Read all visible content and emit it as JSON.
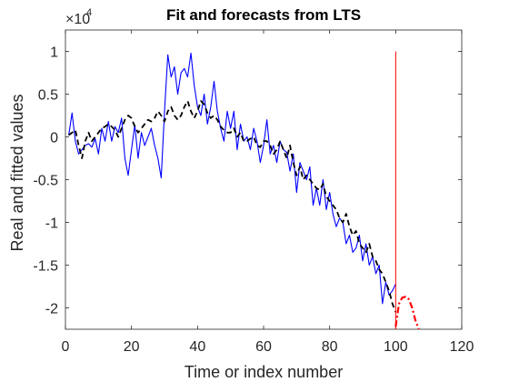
{
  "chart_data": {
    "type": "line",
    "title": "Fit and forecasts from LTS",
    "xlabel": "Time or index number",
    "ylabel": "Real and fitted values",
    "exponent_base": "×10",
    "exponent_power": "4",
    "xlim": [
      0,
      120
    ],
    "ylim": [
      -2.25,
      1.25
    ],
    "y_scale_note": "y values in units of 10^4",
    "x_ticks": [
      0,
      20,
      40,
      60,
      80,
      100,
      120
    ],
    "x_tick_labels": [
      "0",
      "20",
      "40",
      "60",
      "80",
      "100",
      "120"
    ],
    "y_ticks": [
      1,
      0.5,
      0,
      -0.5,
      -1,
      -1.5,
      -2
    ],
    "y_tick_labels": [
      "1",
      "0.5",
      "0",
      "-0.5",
      "-1",
      "-1.5",
      "-2"
    ],
    "grid": false,
    "box": true,
    "vline": {
      "x": 100,
      "y_from": -2.25,
      "y_to": 1.0,
      "color": "#ff0000"
    },
    "series": [
      {
        "style": "solid",
        "color": "#0000ff",
        "x": [
          1,
          2,
          3,
          4,
          5,
          6,
          7,
          8,
          9,
          10,
          11,
          12,
          13,
          14,
          15,
          16,
          17,
          18,
          19,
          20,
          21,
          22,
          23,
          24,
          25,
          26,
          27,
          28,
          29,
          30,
          31,
          32,
          33,
          34,
          35,
          36,
          37,
          38,
          39,
          40,
          41,
          42,
          43,
          44,
          45,
          46,
          47,
          48,
          49,
          50,
          51,
          52,
          53,
          54,
          55,
          56,
          57,
          58,
          59,
          60,
          61,
          62,
          63,
          64,
          65,
          66,
          67,
          68,
          69,
          70,
          71,
          72,
          73,
          74,
          75,
          76,
          77,
          78,
          79,
          80,
          81,
          82,
          83,
          84,
          85,
          86,
          87,
          88,
          89,
          90,
          91,
          92,
          93,
          94,
          95,
          96,
          97,
          98,
          99,
          100
        ],
        "y": [
          0.02,
          0.28,
          -0.05,
          -0.2,
          -0.15,
          -0.1,
          -0.08,
          -0.12,
          -0.02,
          -0.2,
          0.1,
          -0.05,
          0.18,
          -0.05,
          0.12,
          0.05,
          0.22,
          -0.25,
          -0.45,
          -0.15,
          0.14,
          -0.25,
          0.05,
          -0.1,
          0.0,
          0.1,
          -0.1,
          -0.25,
          -0.48,
          0.3,
          0.96,
          0.7,
          0.82,
          0.5,
          0.75,
          0.8,
          0.7,
          0.98,
          0.6,
          0.35,
          0.25,
          0.5,
          0.15,
          0.35,
          0.65,
          0.3,
          0.1,
          -0.05,
          0.3,
          0.1,
          0.3,
          -0.15,
          0.15,
          -0.05,
          0.0,
          -0.15,
          0.1,
          -0.05,
          -0.3,
          -0.1,
          0.2,
          -0.2,
          -0.1,
          -0.3,
          -0.05,
          -0.15,
          -0.18,
          -0.4,
          -0.2,
          -0.65,
          -0.3,
          -0.4,
          -0.5,
          -0.35,
          -0.8,
          -0.6,
          -0.8,
          -0.5,
          -0.85,
          -0.65,
          -0.9,
          -1.05,
          -0.95,
          -1.0,
          -1.25,
          -1.15,
          -1.35,
          -1.3,
          -1.15,
          -1.45,
          -1.25,
          -1.5,
          -1.4,
          -1.6,
          -1.5,
          -1.95,
          -1.7,
          -1.85,
          -1.8,
          -1.72
        ]
      },
      {
        "style": "dashed",
        "color": "#000000",
        "x": [
          1,
          2,
          3,
          4,
          5,
          6,
          7,
          8,
          9,
          10,
          11,
          12,
          13,
          14,
          15,
          16,
          17,
          18,
          19,
          20,
          21,
          22,
          23,
          24,
          25,
          26,
          27,
          28,
          29,
          30,
          31,
          32,
          33,
          34,
          35,
          36,
          37,
          38,
          39,
          40,
          41,
          42,
          43,
          44,
          45,
          46,
          47,
          48,
          49,
          50,
          51,
          52,
          53,
          54,
          55,
          56,
          57,
          58,
          59,
          60,
          61,
          62,
          63,
          64,
          65,
          66,
          67,
          68,
          69,
          70,
          71,
          72,
          73,
          74,
          75,
          76,
          77,
          78,
          79,
          80,
          81,
          82,
          83,
          84,
          85,
          86,
          87,
          88,
          89,
          90,
          91,
          92,
          93,
          94,
          95,
          96,
          97,
          98,
          99,
          100
        ],
        "y": [
          0.02,
          0.05,
          0.08,
          -0.1,
          -0.25,
          -0.05,
          0.05,
          -0.05,
          0.0,
          0.05,
          0.1,
          0.12,
          0.15,
          0.12,
          0.08,
          0.0,
          0.1,
          0.2,
          0.25,
          0.22,
          0.12,
          0.05,
          0.1,
          0.15,
          0.2,
          0.18,
          0.22,
          0.3,
          0.25,
          0.18,
          0.3,
          0.35,
          0.25,
          0.2,
          0.25,
          0.35,
          0.42,
          0.3,
          0.22,
          0.3,
          0.42,
          0.38,
          0.28,
          0.22,
          0.25,
          0.2,
          0.12,
          0.08,
          0.05,
          0.05,
          0.1,
          0.0,
          0.05,
          -0.05,
          -0.05,
          -0.02,
          0.0,
          -0.1,
          -0.12,
          -0.05,
          -0.05,
          -0.1,
          -0.2,
          -0.15,
          -0.05,
          -0.15,
          -0.25,
          -0.1,
          -0.3,
          -0.45,
          -0.35,
          -0.5,
          -0.45,
          -0.5,
          -0.55,
          -0.6,
          -0.62,
          -0.55,
          -0.7,
          -0.75,
          -0.8,
          -0.85,
          -0.95,
          -1.0,
          -0.9,
          -1.05,
          -1.15,
          -1.1,
          -1.25,
          -1.3,
          -1.35,
          -1.25,
          -1.4,
          -1.45,
          -1.55,
          -1.6,
          -1.7,
          -1.8,
          -1.95,
          -2.05
        ]
      },
      {
        "style": "dashdot",
        "color": "#ff0000",
        "x": [
          100,
          101,
          102,
          103,
          104,
          105,
          106,
          107
        ],
        "y": [
          -2.22,
          -1.95,
          -1.88,
          -1.87,
          -1.9,
          -2.0,
          -2.15,
          -2.25
        ]
      }
    ]
  }
}
